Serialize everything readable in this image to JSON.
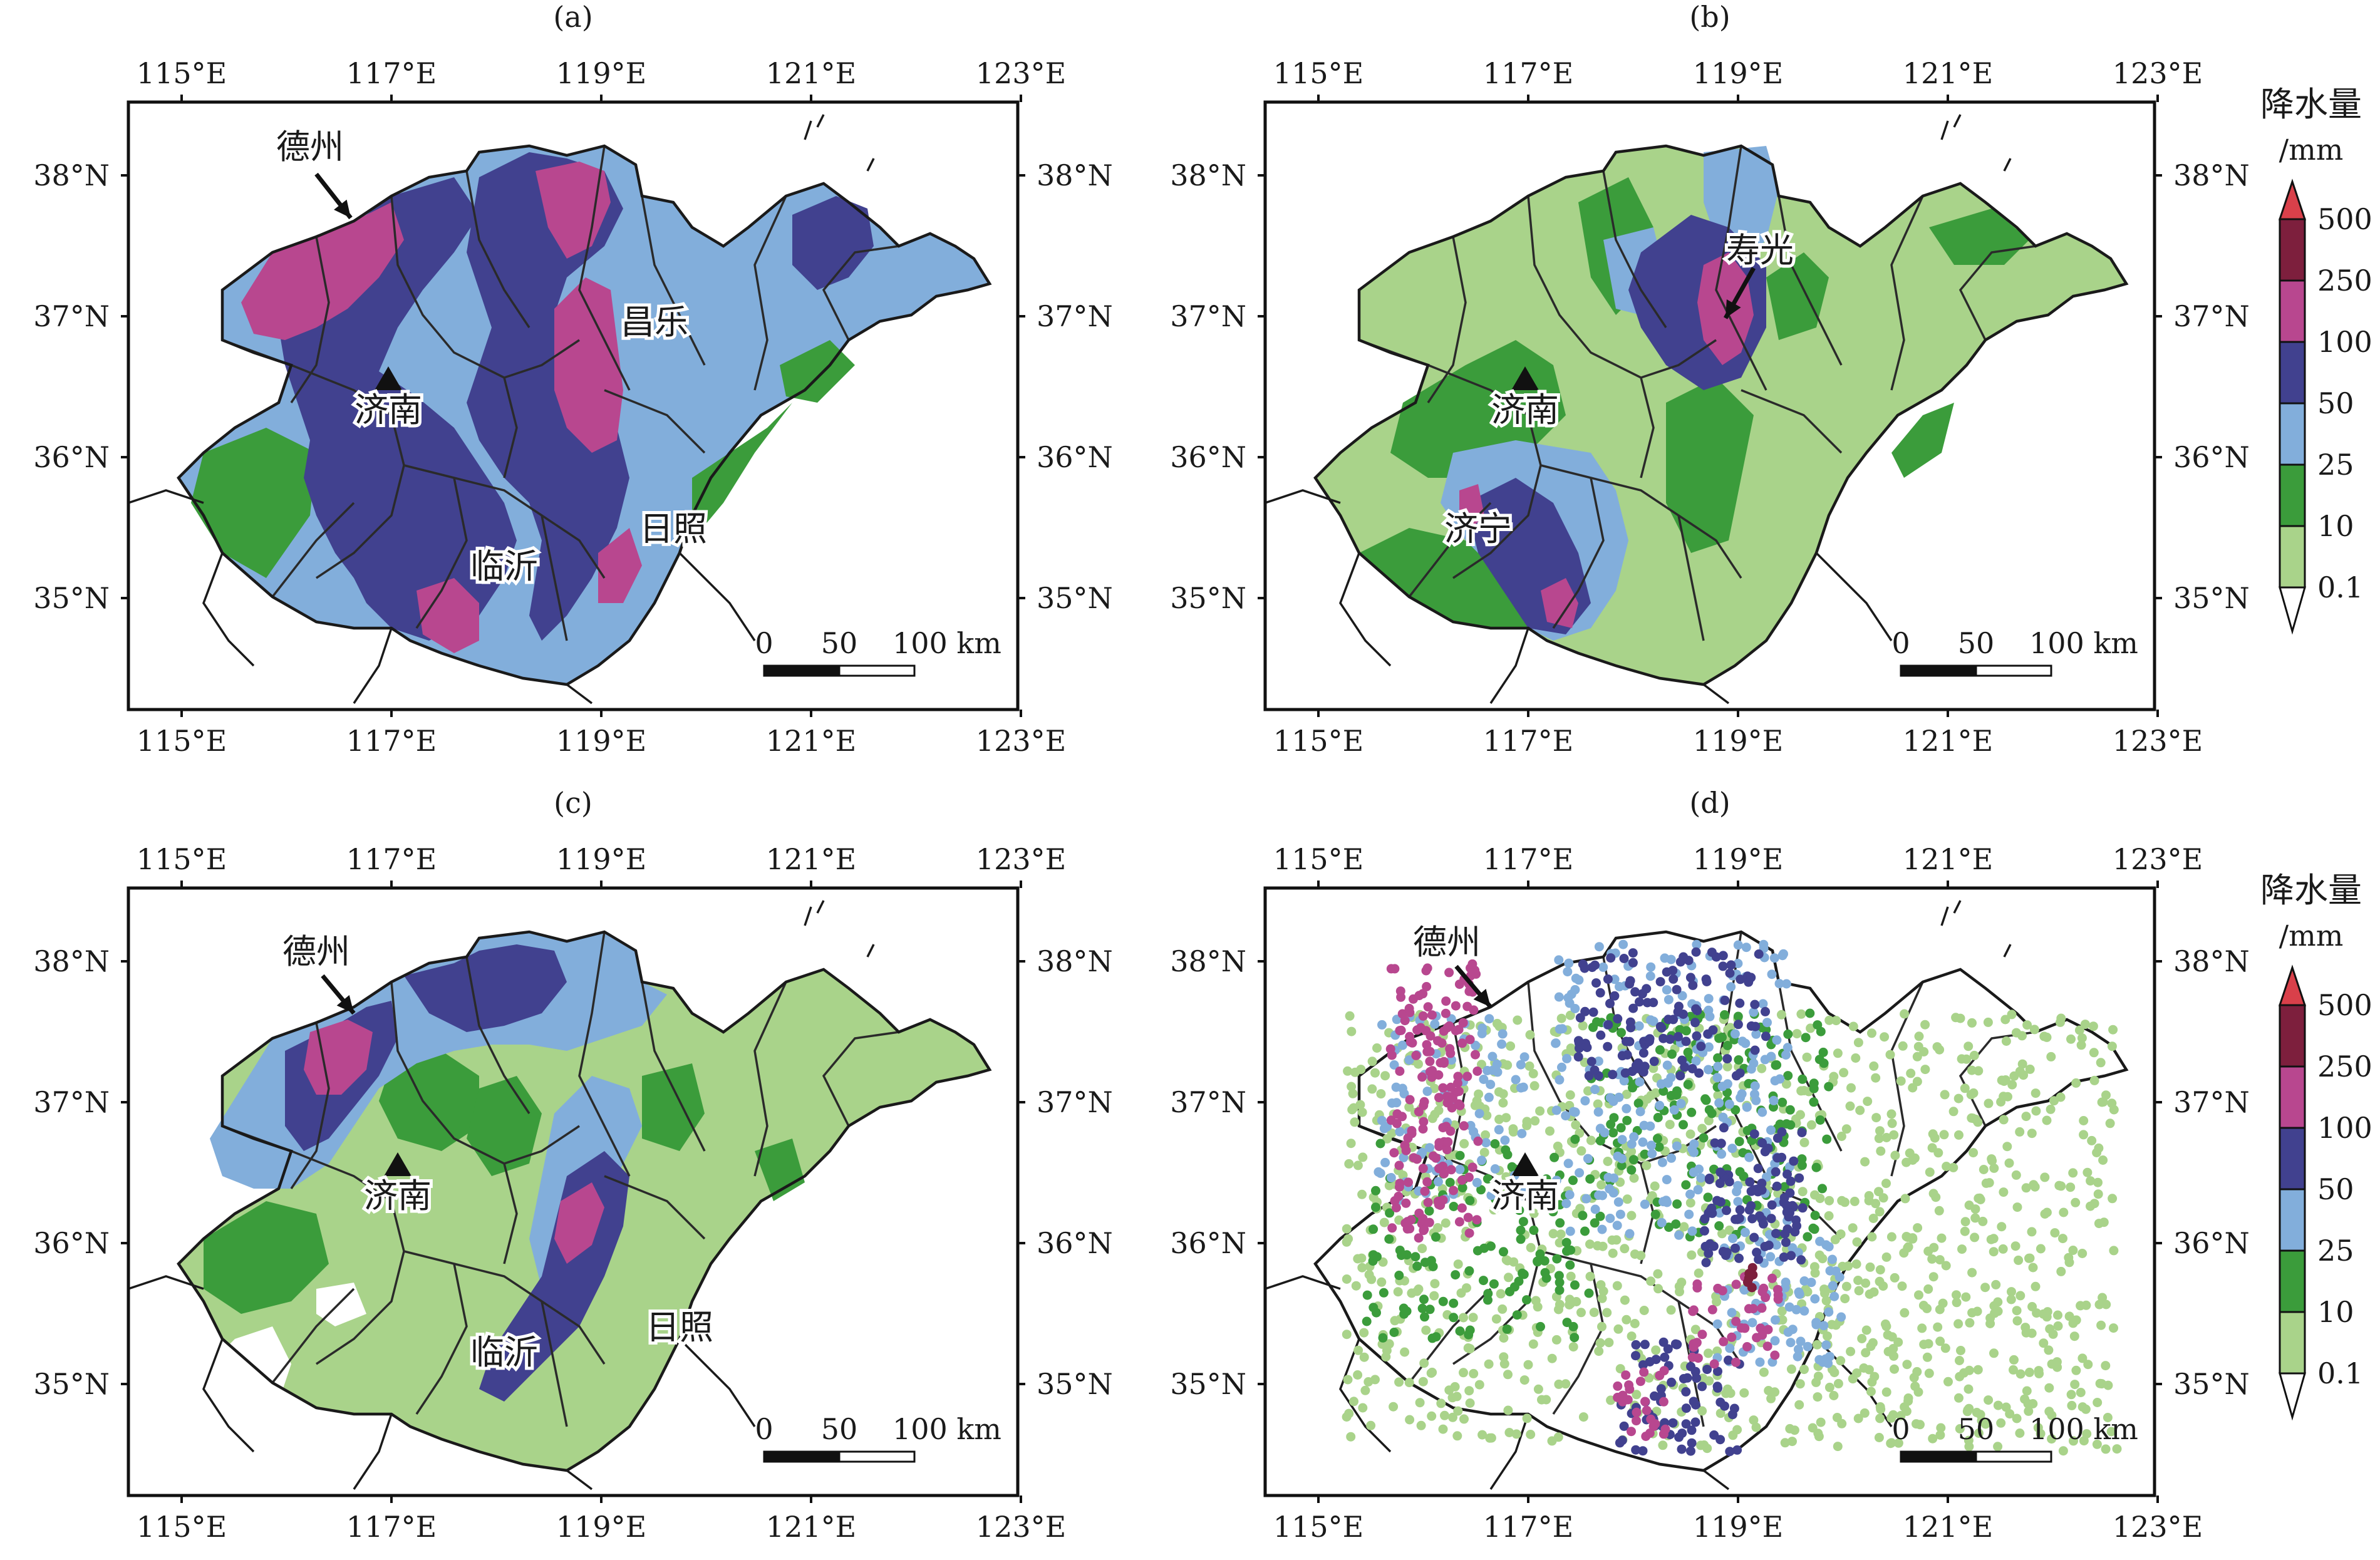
{
  "panels": [
    {
      "id": "a",
      "title": "(a)",
      "place_labels": [
        {
          "text": "德州",
          "role": "arrow-label"
        },
        {
          "text": "济南",
          "role": "city"
        },
        {
          "text": "昌乐",
          "role": "city"
        },
        {
          "text": "日照",
          "role": "city"
        },
        {
          "text": "临沂",
          "role": "city"
        }
      ]
    },
    {
      "id": "b",
      "title": "(b)",
      "place_labels": [
        {
          "text": "寿光",
          "role": "arrow-label"
        },
        {
          "text": "济南",
          "role": "city"
        },
        {
          "text": "济宁",
          "role": "city"
        }
      ]
    },
    {
      "id": "c",
      "title": "(c)",
      "place_labels": [
        {
          "text": "德州",
          "role": "arrow-label"
        },
        {
          "text": "济南",
          "role": "city"
        },
        {
          "text": "日照",
          "role": "city"
        },
        {
          "text": "临沂",
          "role": "city"
        }
      ]
    },
    {
      "id": "d",
      "title": "(d)",
      "place_labels": [
        {
          "text": "德州",
          "role": "arrow-label"
        },
        {
          "text": "济南",
          "role": "city"
        }
      ]
    }
  ],
  "longitude_ticks": [
    "115°E",
    "117°E",
    "119°E",
    "121°E",
    "123°E"
  ],
  "latitude_ticks": [
    "38°N",
    "37°N",
    "36°N",
    "35°N"
  ],
  "scale_bar": {
    "labels": [
      "0",
      "50",
      "100 km"
    ]
  },
  "legend": {
    "title_line1": "降水量",
    "title_line2": "/mm",
    "levels": [
      "500",
      "250",
      "100",
      "50",
      "25",
      "10",
      "0.1"
    ],
    "colors": {
      "above_500": "#d9404a",
      "250_500": "#7d1f3d",
      "100_250": "#b8478f",
      "50_100": "#41418f",
      "25_50": "#82aedb",
      "10_25": "#3b9c3b",
      "0.1_10": "#a9d38a",
      "below_0.1": "#ffffff"
    }
  }
}
